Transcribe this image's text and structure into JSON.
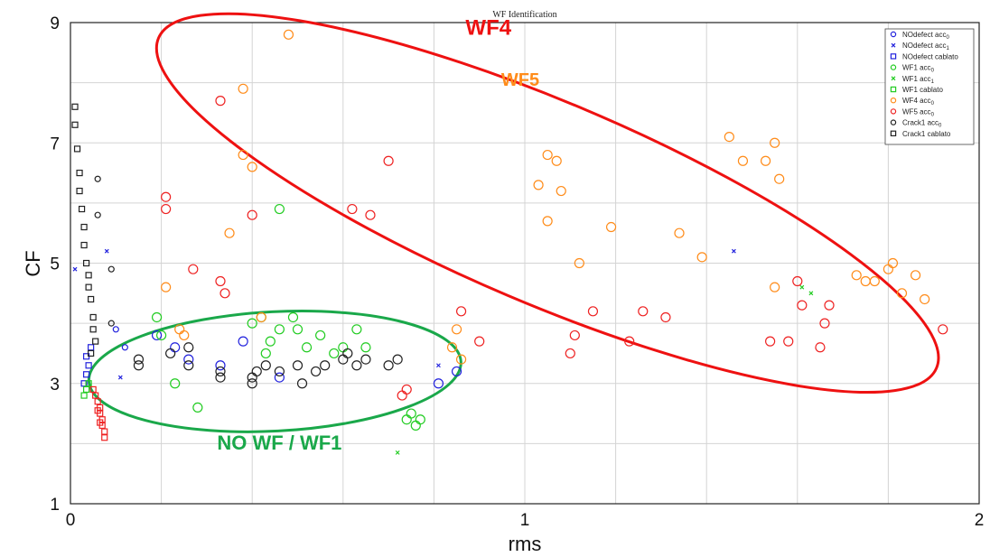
{
  "chart_data": {
    "type": "scatter",
    "title": "WF Identification",
    "xlabel": "rms",
    "ylabel": "CF",
    "xlim": [
      0,
      2
    ],
    "ylim": [
      1,
      9
    ],
    "x_ticks": [
      0,
      1,
      2
    ],
    "x_tick_labels": [
      "0",
      "1",
      "2"
    ],
    "y_ticks": [
      1,
      3,
      5,
      7,
      9
    ],
    "y_tick_labels": [
      "1",
      "3",
      "5",
      "7",
      "9"
    ],
    "grid": true,
    "legend_placement": "top-right",
    "series": [
      {
        "name": "NOdefect acc0",
        "legend": {
          "base": "NOdefect acc",
          "sub": "0"
        },
        "color": "#2222dd",
        "marker": "circle",
        "points": [
          [
            0.1,
            3.9
          ],
          [
            0.12,
            3.6
          ],
          [
            0.19,
            3.8
          ],
          [
            0.23,
            3.6
          ],
          [
            0.26,
            3.4
          ],
          [
            0.33,
            3.3
          ],
          [
            0.38,
            3.7
          ],
          [
            0.46,
            3.1
          ],
          [
            0.81,
            3.0
          ],
          [
            0.85,
            3.2
          ]
        ]
      },
      {
        "name": "NOdefect acc1",
        "legend": {
          "base": "NOdefect acc",
          "sub": "1"
        },
        "color": "#2222dd",
        "marker": "x",
        "points": [
          [
            0.01,
            4.9
          ],
          [
            0.08,
            5.2
          ],
          [
            0.11,
            3.1
          ],
          [
            1.46,
            5.2
          ],
          [
            0.81,
            3.3
          ]
        ]
      },
      {
        "name": "NOdefect cablato",
        "legend": {
          "base": "NOdefect cablato",
          "sub": ""
        },
        "color": "#2222dd",
        "marker": "square",
        "points": [
          [
            0.03,
            3.0
          ],
          [
            0.035,
            3.15
          ],
          [
            0.04,
            3.3
          ],
          [
            0.035,
            3.45
          ],
          [
            0.045,
            3.6
          ]
        ]
      },
      {
        "name": "WF1 acc0",
        "legend": {
          "base": "WF1 acc",
          "sub": "0"
        },
        "color": "#22cc22",
        "marker": "circle",
        "points": [
          [
            0.19,
            4.1
          ],
          [
            0.2,
            3.8
          ],
          [
            0.23,
            3.0
          ],
          [
            0.28,
            2.6
          ],
          [
            0.4,
            4.0
          ],
          [
            0.42,
            4.1
          ],
          [
            0.44,
            3.7
          ],
          [
            0.46,
            3.9
          ],
          [
            0.49,
            4.1
          ],
          [
            0.5,
            3.9
          ],
          [
            0.52,
            3.6
          ],
          [
            0.55,
            3.8
          ],
          [
            0.58,
            3.5
          ],
          [
            0.6,
            3.6
          ],
          [
            0.63,
            3.9
          ],
          [
            0.65,
            3.6
          ],
          [
            0.43,
            3.5
          ],
          [
            0.46,
            5.9
          ],
          [
            0.74,
            2.4
          ],
          [
            0.76,
            2.3
          ],
          [
            0.75,
            2.5
          ],
          [
            0.77,
            2.4
          ]
        ]
      },
      {
        "name": "WF1 acc1",
        "legend": {
          "base": "WF1 acc",
          "sub": "1"
        },
        "color": "#22cc22",
        "marker": "x",
        "points": [
          [
            0.72,
            1.85
          ],
          [
            1.61,
            4.6
          ],
          [
            1.63,
            4.5
          ]
        ]
      },
      {
        "name": "WF1 cablato",
        "legend": {
          "base": "WF1 cablato",
          "sub": ""
        },
        "color": "#22cc22",
        "marker": "square",
        "points": [
          [
            0.03,
            2.8
          ],
          [
            0.035,
            2.9
          ],
          [
            0.04,
            3.0
          ]
        ]
      },
      {
        "name": "WF4 acc0",
        "legend": {
          "base": "WF4 acc",
          "sub": "0"
        },
        "color": "#ff8c1a",
        "marker": "circle",
        "points": [
          [
            0.48,
            8.8
          ],
          [
            0.38,
            7.9
          ],
          [
            0.38,
            6.8
          ],
          [
            0.4,
            6.6
          ],
          [
            0.35,
            5.5
          ],
          [
            0.21,
            4.6
          ],
          [
            0.24,
            3.9
          ],
          [
            0.25,
            3.8
          ],
          [
            0.42,
            4.1
          ],
          [
            1.03,
            6.3
          ],
          [
            1.05,
            6.8
          ],
          [
            1.07,
            6.7
          ],
          [
            1.08,
            6.2
          ],
          [
            1.05,
            5.7
          ],
          [
            1.12,
            5.0
          ],
          [
            1.19,
            5.6
          ],
          [
            1.34,
            5.5
          ],
          [
            1.39,
            5.1
          ],
          [
            1.45,
            7.1
          ],
          [
            1.48,
            6.7
          ],
          [
            1.53,
            6.7
          ],
          [
            1.55,
            7.0
          ],
          [
            1.56,
            6.4
          ],
          [
            1.55,
            4.6
          ],
          [
            1.73,
            4.8
          ],
          [
            1.75,
            4.7
          ],
          [
            1.77,
            4.7
          ],
          [
            1.8,
            4.9
          ],
          [
            1.81,
            5.0
          ],
          [
            1.83,
            4.5
          ],
          [
            1.86,
            4.8
          ],
          [
            1.88,
            4.4
          ],
          [
            0.85,
            3.9
          ],
          [
            0.84,
            3.6
          ],
          [
            0.86,
            3.4
          ]
        ]
      },
      {
        "name": "WF5 acc0",
        "legend": {
          "base": "WF5 acc",
          "sub": "0"
        },
        "color": "#ee2222",
        "marker": "circle",
        "points": [
          [
            0.33,
            7.7
          ],
          [
            0.21,
            6.1
          ],
          [
            0.21,
            5.9
          ],
          [
            0.4,
            5.8
          ],
          [
            0.27,
            4.9
          ],
          [
            0.33,
            4.7
          ],
          [
            0.34,
            4.5
          ],
          [
            0.7,
            6.7
          ],
          [
            0.62,
            5.9
          ],
          [
            0.66,
            5.8
          ],
          [
            0.86,
            4.2
          ],
          [
            0.9,
            3.7
          ],
          [
            1.1,
            3.5
          ],
          [
            1.11,
            3.8
          ],
          [
            1.15,
            4.2
          ],
          [
            1.23,
            3.7
          ],
          [
            1.26,
            4.2
          ],
          [
            1.31,
            4.1
          ],
          [
            1.54,
            3.7
          ],
          [
            1.58,
            3.7
          ],
          [
            1.6,
            4.7
          ],
          [
            1.61,
            4.3
          ],
          [
            1.65,
            3.6
          ],
          [
            1.66,
            4.0
          ],
          [
            1.67,
            4.3
          ],
          [
            1.92,
            3.9
          ],
          [
            0.73,
            2.8
          ],
          [
            0.74,
            2.9
          ]
        ]
      },
      {
        "name": "Crack1 acc0",
        "legend": {
          "base": "Crack1 acc",
          "sub": "0"
        },
        "color": "#222222",
        "marker": "circle",
        "points": [
          [
            0.06,
            6.4
          ],
          [
            0.06,
            5.8
          ],
          [
            0.09,
            4.9
          ],
          [
            0.09,
            4.0
          ],
          [
            0.15,
            3.4
          ],
          [
            0.15,
            3.3
          ],
          [
            0.22,
            3.5
          ],
          [
            0.26,
            3.6
          ],
          [
            0.26,
            3.3
          ],
          [
            0.33,
            3.1
          ],
          [
            0.33,
            3.2
          ],
          [
            0.4,
            3.0
          ],
          [
            0.4,
            3.1
          ],
          [
            0.41,
            3.2
          ],
          [
            0.43,
            3.3
          ],
          [
            0.46,
            3.2
          ],
          [
            0.51,
            3.0
          ],
          [
            0.5,
            3.3
          ],
          [
            0.54,
            3.2
          ],
          [
            0.56,
            3.3
          ],
          [
            0.6,
            3.4
          ],
          [
            0.61,
            3.5
          ],
          [
            0.63,
            3.3
          ],
          [
            0.65,
            3.4
          ],
          [
            0.7,
            3.3
          ],
          [
            0.72,
            3.4
          ]
        ]
      },
      {
        "name": "Crack1 cablato",
        "legend": {
          "base": "Crack1 cablato",
          "sub": ""
        },
        "color": "#222222",
        "marker": "square",
        "points": [
          [
            0.01,
            7.6
          ],
          [
            0.01,
            7.3
          ],
          [
            0.015,
            6.9
          ],
          [
            0.02,
            6.5
          ],
          [
            0.02,
            6.2
          ],
          [
            0.025,
            5.9
          ],
          [
            0.03,
            5.6
          ],
          [
            0.03,
            5.3
          ],
          [
            0.035,
            5.0
          ],
          [
            0.04,
            4.8
          ],
          [
            0.04,
            4.6
          ],
          [
            0.045,
            4.4
          ],
          [
            0.05,
            4.1
          ],
          [
            0.05,
            3.9
          ],
          [
            0.055,
            3.7
          ],
          [
            0.045,
            3.5
          ]
        ]
      },
      {
        "name": "",
        "color": "#ee2222",
        "marker": "square",
        "points": [
          [
            0.05,
            2.9
          ],
          [
            0.055,
            2.8
          ],
          [
            0.06,
            2.7
          ],
          [
            0.065,
            2.6
          ],
          [
            0.065,
            2.5
          ],
          [
            0.07,
            2.4
          ],
          [
            0.07,
            2.3
          ],
          [
            0.075,
            2.2
          ],
          [
            0.075,
            2.1
          ],
          [
            0.06,
            2.55
          ],
          [
            0.065,
            2.35
          ]
        ]
      }
    ],
    "annotations": [
      {
        "text": "WF4",
        "color": "#ee1111",
        "x": 0.92,
        "y": 8.8,
        "size": 24
      },
      {
        "text": "WF5",
        "color": "#ff8c1a",
        "x": 0.99,
        "y": 7.95,
        "size": 20
      },
      {
        "text": "NO WF / WF1",
        "color": "#1aa84a",
        "x": 0.46,
        "y": 1.9,
        "size": 22
      }
    ],
    "regions": [
      {
        "shape": "ellipse",
        "color": "#ee1111",
        "cx": 1.05,
        "cy": 6.0,
        "rx": 0.93,
        "ry": 2.7,
        "rotation_deg": 23
      },
      {
        "shape": "ellipse",
        "color": "#1aa84a",
        "cx": 0.45,
        "cy": 3.2,
        "rx": 0.41,
        "ry": 1.6,
        "rotation_deg": -3
      }
    ]
  }
}
